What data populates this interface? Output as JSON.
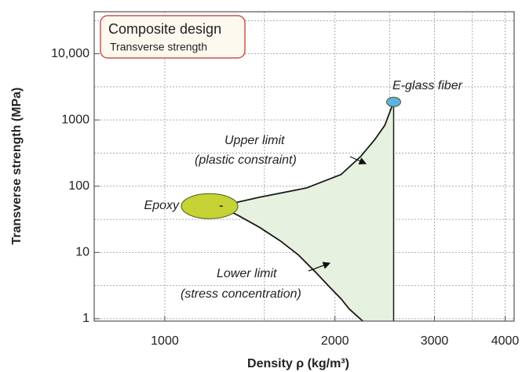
{
  "chart_data": {
    "type": "region",
    "title": "Composite design",
    "subtitle": "Transverse strength",
    "x_label": "Density ρ (kg/m³)",
    "y_label": "Transverse strength (MPa)",
    "log_x": true,
    "log_y": true,
    "xlim": [
      750,
      4150
    ],
    "ylim": [
      0.92,
      43000
    ],
    "xticks": [
      1000,
      2000,
      3000,
      4000
    ],
    "yticks": [
      1,
      10,
      100,
      1000,
      {
        "value": 10000,
        "label": "10,000"
      }
    ],
    "x_minor_grid": [
      1500,
      2500,
      3500
    ],
    "y_minor_grid": [
      3.16,
      31.6,
      316,
      3160,
      31600
    ],
    "grid": true,
    "fill_color": "#e6f2df",
    "series": [
      {
        "name": "Upper limit",
        "label": "(plastic constraint)",
        "color": "#1a1a1a",
        "x": [
          1250,
          1470,
          1780,
          2050,
          2220,
          2350,
          2450,
          2540
        ],
        "values": [
          50,
          68,
          94,
          150,
          280,
          500,
          830,
          1870
        ]
      },
      {
        "name": "Lower limit",
        "label": "(stress concentration)",
        "color": "#1a1a1a",
        "x": [
          1250,
          1350,
          1470,
          1600,
          1720,
          1850,
          1950,
          2050,
          2120,
          2240
        ],
        "values": [
          50,
          36,
          24,
          15,
          9.3,
          5,
          3.1,
          2,
          1.4,
          0.92
        ]
      }
    ],
    "points": [
      {
        "name": "Epoxy",
        "x": 1200,
        "y": 50,
        "color": "#c5d334"
      },
      {
        "name": "E-glass fiber",
        "x": 2540,
        "y": 1870,
        "color": "#5eb2e2"
      }
    ]
  }
}
